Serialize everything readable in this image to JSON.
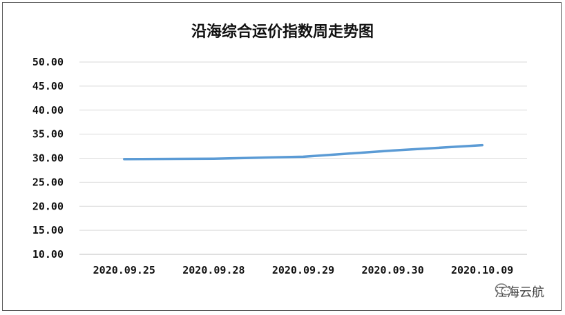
{
  "chart_data": {
    "type": "line",
    "title": "沿海综合运价指数周走势图",
    "categories": [
      "2020.09.25",
      "2020.09.28",
      "2020.09.29",
      "2020.09.30",
      "2020.10.09"
    ],
    "series": [
      {
        "values": [
          29.8,
          29.9,
          30.3,
          31.6,
          32.7
        ],
        "color": "#5b9bd5"
      }
    ],
    "yticks": [
      "10.00",
      "15.00",
      "20.00",
      "25.00",
      "30.00",
      "35.00",
      "40.00",
      "45.00",
      "50.00"
    ],
    "ylim": [
      10,
      50
    ],
    "grid": true,
    "legend": "none"
  },
  "watermark": {
    "text": "江海云航",
    "icon": "wechat-icon"
  }
}
